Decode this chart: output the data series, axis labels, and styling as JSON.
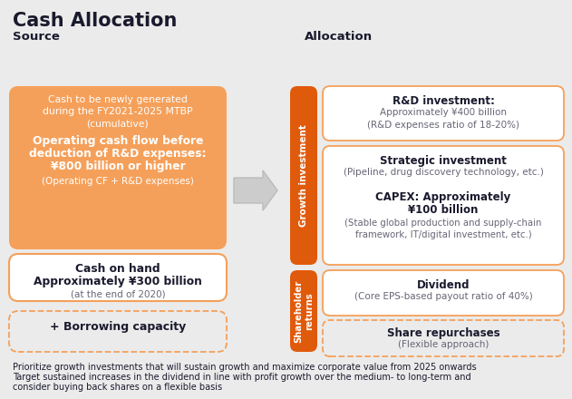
{
  "title": "Cash Allocation",
  "bg_color": "#ebebeb",
  "source_label": "Source",
  "allocation_label": "Allocation",
  "orange_dark": "#E05A0C",
  "orange_light": "#F5A05A",
  "border_orange": "#F5A05A",
  "dark_text": "#1a1a2e",
  "gray_text": "#666677",
  "box1_line1": "Cash to be newly generated",
  "box1_line2": "during the FY2021-2025 MTBP",
  "box1_line3": "(cumulative)",
  "box1_bold1": "Operating cash flow before",
  "box1_bold2": "deduction of R&D expenses:",
  "box1_bold3": "¥800 billion or higher",
  "box1_sub": "(Operating CF + R&D expenses)",
  "box2_bold1": "Cash on hand",
  "box2_bold2": "Approximately ¥300 billion",
  "box2_sub": "(at the end of 2020)",
  "box3_text": "+ Borrowing capacity",
  "growth_label": "Growth investment",
  "shareholder_label": "Shareholder\nreturns",
  "rd_title": "R&D investment:",
  "rd_sub1": "Approximately ¥400 billion",
  "rd_sub2": "(R&D expenses ratio of 18-20%)",
  "strategic_title": "Strategic investment",
  "strategic_sub": "(Pipeline, drug discovery technology, etc.)",
  "capex_bold1": "CAPEX: Approximately",
  "capex_bold2": "¥100 billion",
  "capex_sub1": "(Stable global production and supply-chain",
  "capex_sub2": "framework, IT/digital investment, etc.)",
  "dividend_title": "Dividend",
  "dividend_sub": "(Core EPS-based payout ratio of 40%)",
  "share_title": "Share repurchases",
  "share_sub": "(Flexible approach)",
  "footer1": "Prioritize growth investments that will sustain growth and maximize corporate value from 2025 onwards",
  "footer2": "Target sustained increases in the dividend in line with profit growth over the medium- to long-term and",
  "footer3": "consider buying back shares on a flexible basis"
}
